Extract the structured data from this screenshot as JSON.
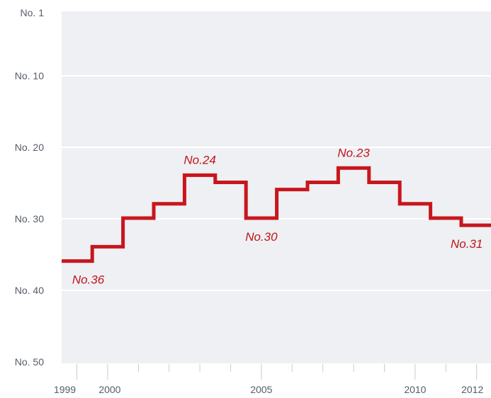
{
  "chart_data": {
    "type": "line",
    "step": true,
    "y_reversed": true,
    "ylim": [
      1,
      50
    ],
    "xlim": [
      1998.5,
      2012.5
    ],
    "y_ticks": [
      {
        "value": 1,
        "label": "No. 1"
      },
      {
        "value": 10,
        "label": "No. 10"
      },
      {
        "value": 20,
        "label": "No. 20"
      },
      {
        "value": 30,
        "label": "No. 30"
      },
      {
        "value": 40,
        "label": "No. 40"
      },
      {
        "value": 50,
        "label": "No. 50"
      }
    ],
    "x_ticks": [
      1999,
      2000,
      2001,
      2002,
      2003,
      2004,
      2005,
      2006,
      2007,
      2008,
      2009,
      2010,
      2011,
      2012
    ],
    "x_tick_labels": [
      {
        "value": 1999,
        "label": "1999"
      },
      {
        "value": 2000,
        "label": "2000"
      },
      {
        "value": 2005,
        "label": "2005"
      },
      {
        "value": 2010,
        "label": "2010"
      },
      {
        "value": 2012,
        "label": "2012"
      }
    ],
    "series": [
      {
        "x": [
          1999,
          2000,
          2001,
          2002,
          2003,
          2004,
          2005,
          2006,
          2007,
          2008,
          2009,
          2010,
          2011,
          2012
        ],
        "y": [
          36,
          34,
          30,
          28,
          24,
          25,
          30,
          26,
          25,
          23,
          25,
          28,
          30,
          31
        ],
        "color": "#c8161d"
      }
    ],
    "annotations": [
      {
        "x": 1999,
        "y": 36,
        "text": "No.36",
        "position": "below"
      },
      {
        "x": 2003,
        "y": 24,
        "text": "No.24",
        "position": "above"
      },
      {
        "x": 2005,
        "y": 30,
        "text": "No.30",
        "position": "below"
      },
      {
        "x": 2008,
        "y": 23,
        "text": "No.23",
        "position": "above"
      },
      {
        "x": 2012,
        "y": 31,
        "text": "No.31",
        "position": "below"
      }
    ],
    "grid": true,
    "colors": {
      "plot_background": "#eef0f3",
      "grid": "#ffffff",
      "line": "#c8161d",
      "annotation": "#c0141c",
      "tick_label": "#555d66"
    }
  }
}
